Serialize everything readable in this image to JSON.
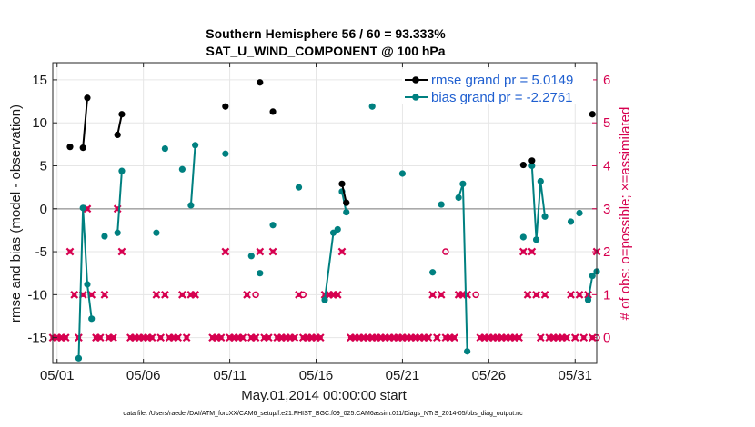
{
  "title_line1": "Southern Hemisphere 56 / 60 = 93.333%",
  "title_line2": "SAT_U_WIND_COMPONENT @ 100 hPa",
  "xlabel": "May.01,2014 00:00:00 start",
  "ylabel_left": "rmse and bias (model - observation)",
  "ylabel_right": "# of obs: o=possible; ×=assimilated",
  "footer": "data file: /Users/raeder/DAI/ATM_forcXX/CAM6_setup/f.e21.FHIST_BGC.f09_025.CAM6assim.011/Diags_NTrS_2014-05/obs_diag_output.nc",
  "chart_data": {
    "type": "line",
    "x_ticks": [
      0,
      5,
      10,
      15,
      20,
      25,
      30
    ],
    "x_tick_labels": [
      "05/01",
      "05/06",
      "05/11",
      "05/16",
      "05/21",
      "05/26",
      "05/31"
    ],
    "xlim": [
      -0.25,
      31.25
    ],
    "ylim_left": [
      -18,
      17
    ],
    "yticks_left": [
      -15,
      -10,
      -5,
      0,
      5,
      10,
      15
    ],
    "ylim_right": [
      -0.6,
      6.4
    ],
    "yticks_right": [
      0,
      1,
      2,
      3,
      4,
      5,
      6
    ],
    "zero_line": true,
    "colors": {
      "rmse": "#000000",
      "bias": "#008080",
      "obs": "#d6004f",
      "legend_text": "#1f5fd0",
      "zero": "#aaaaaa"
    },
    "legend": {
      "position": "top-right",
      "entries": [
        "rmse grand pr = 5.0149",
        "bias grand pr = -2.2761"
      ]
    },
    "series": [
      {
        "name": "rmse grand pr = 5.0149",
        "axis": "left",
        "segments": [
          [
            [
              0.75,
              7.2
            ]
          ],
          [
            [
              1.5,
              7.1
            ],
            [
              1.75,
              12.9
            ]
          ],
          [
            [
              3.5,
              8.6
            ],
            [
              3.75,
              11.0
            ]
          ],
          [
            [
              9.75,
              11.9
            ]
          ],
          [
            [
              11.75,
              14.7
            ]
          ],
          [
            [
              12.5,
              11.3
            ]
          ],
          [
            [
              16.5,
              2.9
            ],
            [
              16.75,
              0.7
            ]
          ],
          [
            [
              27.0,
              5.1
            ]
          ],
          [
            [
              27.5,
              5.6
            ]
          ],
          [
            [
              31.0,
              11.0
            ]
          ]
        ]
      },
      {
        "name": "bias grand pr = -2.2761",
        "axis": "left",
        "segments": [
          [
            [
              1.25,
              -17.4
            ],
            [
              1.5,
              0.1
            ],
            [
              1.75,
              -8.8
            ],
            [
              2.0,
              -12.8
            ]
          ],
          [
            [
              2.75,
              -3.2
            ]
          ],
          [
            [
              3.5,
              -2.8
            ],
            [
              3.75,
              4.4
            ]
          ],
          [
            [
              5.75,
              -2.8
            ]
          ],
          [
            [
              6.25,
              7.0
            ]
          ],
          [
            [
              7.25,
              4.6
            ]
          ],
          [
            [
              7.75,
              0.4
            ],
            [
              8.0,
              7.4
            ]
          ],
          [
            [
              9.75,
              6.4
            ]
          ],
          [
            [
              11.25,
              -5.5
            ]
          ],
          [
            [
              11.75,
              -7.5
            ]
          ],
          [
            [
              12.5,
              -1.9
            ]
          ],
          [
            [
              14.0,
              2.5
            ]
          ],
          [
            [
              15.5,
              -10.6
            ],
            [
              16.0,
              -2.8
            ],
            [
              16.25,
              -2.4
            ]
          ],
          [
            [
              16.5,
              2.0
            ],
            [
              16.75,
              -0.4
            ]
          ],
          [
            [
              18.25,
              11.9
            ]
          ],
          [
            [
              20.0,
              4.1
            ]
          ],
          [
            [
              21.75,
              -7.4
            ]
          ],
          [
            [
              22.25,
              0.5
            ]
          ],
          [
            [
              23.25,
              1.3
            ],
            [
              23.5,
              2.9
            ],
            [
              23.75,
              -16.6
            ]
          ],
          [
            [
              27.0,
              -3.3
            ]
          ],
          [
            [
              27.5,
              5.0
            ],
            [
              27.75,
              -3.6
            ],
            [
              28.0,
              3.2
            ],
            [
              28.25,
              -0.9
            ]
          ],
          [
            [
              29.75,
              -1.5
            ]
          ],
          [
            [
              30.25,
              -0.5
            ]
          ],
          [
            [
              30.75,
              -10.6
            ],
            [
              31.0,
              -7.8
            ],
            [
              31.25,
              -7.3
            ]
          ]
        ]
      },
      {
        "name": "obs_assimilated",
        "axis": "right",
        "points": [
          [
            -0.25,
            0
          ],
          [
            0,
            0
          ],
          [
            0.25,
            0
          ],
          [
            0.5,
            0
          ],
          [
            0.75,
            2
          ],
          [
            1.0,
            1
          ],
          [
            1.25,
            0
          ],
          [
            1.5,
            1
          ],
          [
            1.75,
            3
          ],
          [
            2.0,
            1
          ],
          [
            2.25,
            0
          ],
          [
            2.5,
            0
          ],
          [
            2.75,
            1
          ],
          [
            3.0,
            0
          ],
          [
            3.25,
            0
          ],
          [
            3.5,
            3
          ],
          [
            3.75,
            2
          ],
          [
            4.25,
            0
          ],
          [
            4.5,
            0
          ],
          [
            4.75,
            0
          ],
          [
            5.0,
            0
          ],
          [
            5.25,
            0
          ],
          [
            5.5,
            0
          ],
          [
            5.75,
            1
          ],
          [
            6.0,
            0
          ],
          [
            6.25,
            1
          ],
          [
            6.5,
            0
          ],
          [
            6.75,
            0
          ],
          [
            7.0,
            0
          ],
          [
            7.25,
            1
          ],
          [
            7.5,
            0
          ],
          [
            7.75,
            1
          ],
          [
            8.0,
            1
          ],
          [
            9.0,
            0
          ],
          [
            9.25,
            0
          ],
          [
            9.5,
            0
          ],
          [
            9.75,
            2
          ],
          [
            10.0,
            0
          ],
          [
            10.25,
            0
          ],
          [
            10.5,
            0
          ],
          [
            10.75,
            0
          ],
          [
            11.0,
            1
          ],
          [
            11.25,
            0
          ],
          [
            11.5,
            0
          ],
          [
            11.75,
            2
          ],
          [
            12.0,
            0
          ],
          [
            12.25,
            0
          ],
          [
            12.5,
            2
          ],
          [
            12.75,
            0
          ],
          [
            13.0,
            0
          ],
          [
            13.25,
            0
          ],
          [
            13.5,
            0
          ],
          [
            13.75,
            0
          ],
          [
            14.0,
            1
          ],
          [
            14.25,
            0
          ],
          [
            14.5,
            0
          ],
          [
            14.75,
            0
          ],
          [
            15.0,
            0
          ],
          [
            15.25,
            0
          ],
          [
            15.5,
            1
          ],
          [
            15.75,
            1
          ],
          [
            16.0,
            1
          ],
          [
            16.25,
            1
          ],
          [
            16.5,
            2
          ],
          [
            17.0,
            0
          ],
          [
            17.25,
            0
          ],
          [
            17.5,
            0
          ],
          [
            17.75,
            0
          ],
          [
            18.0,
            0
          ],
          [
            18.25,
            0
          ],
          [
            18.5,
            0
          ],
          [
            18.75,
            0
          ],
          [
            19.0,
            0
          ],
          [
            19.25,
            0
          ],
          [
            19.5,
            0
          ],
          [
            19.75,
            0
          ],
          [
            20.0,
            0
          ],
          [
            20.25,
            0
          ],
          [
            20.5,
            0
          ],
          [
            20.75,
            0
          ],
          [
            21.0,
            0
          ],
          [
            21.25,
            0
          ],
          [
            21.5,
            0
          ],
          [
            21.75,
            1
          ],
          [
            22.0,
            0
          ],
          [
            22.25,
            1
          ],
          [
            22.5,
            0
          ],
          [
            22.75,
            0
          ],
          [
            23.0,
            0
          ],
          [
            23.25,
            1
          ],
          [
            23.5,
            1
          ],
          [
            23.75,
            1
          ],
          [
            24.5,
            0
          ],
          [
            24.75,
            0
          ],
          [
            25.0,
            0
          ],
          [
            25.25,
            0
          ],
          [
            25.5,
            0
          ],
          [
            25.75,
            0
          ],
          [
            26.0,
            0
          ],
          [
            26.25,
            0
          ],
          [
            26.5,
            0
          ],
          [
            26.75,
            0
          ],
          [
            27.0,
            2
          ],
          [
            27.25,
            1
          ],
          [
            27.5,
            2
          ],
          [
            27.75,
            1
          ],
          [
            28.0,
            0
          ],
          [
            28.25,
            1
          ],
          [
            28.5,
            0
          ],
          [
            28.75,
            0
          ],
          [
            29.0,
            0
          ],
          [
            29.25,
            0
          ],
          [
            29.5,
            0
          ],
          [
            29.75,
            1
          ],
          [
            30.0,
            0
          ],
          [
            30.25,
            1
          ],
          [
            30.5,
            0
          ],
          [
            30.75,
            1
          ],
          [
            31.0,
            0
          ],
          [
            31.25,
            2
          ]
        ]
      },
      {
        "name": "obs_possible",
        "axis": "right",
        "points": [
          [
            11.5,
            1
          ],
          [
            14.25,
            1
          ],
          [
            22.5,
            2
          ],
          [
            24.25,
            1
          ],
          [
            31.25,
            0
          ]
        ]
      }
    ]
  }
}
